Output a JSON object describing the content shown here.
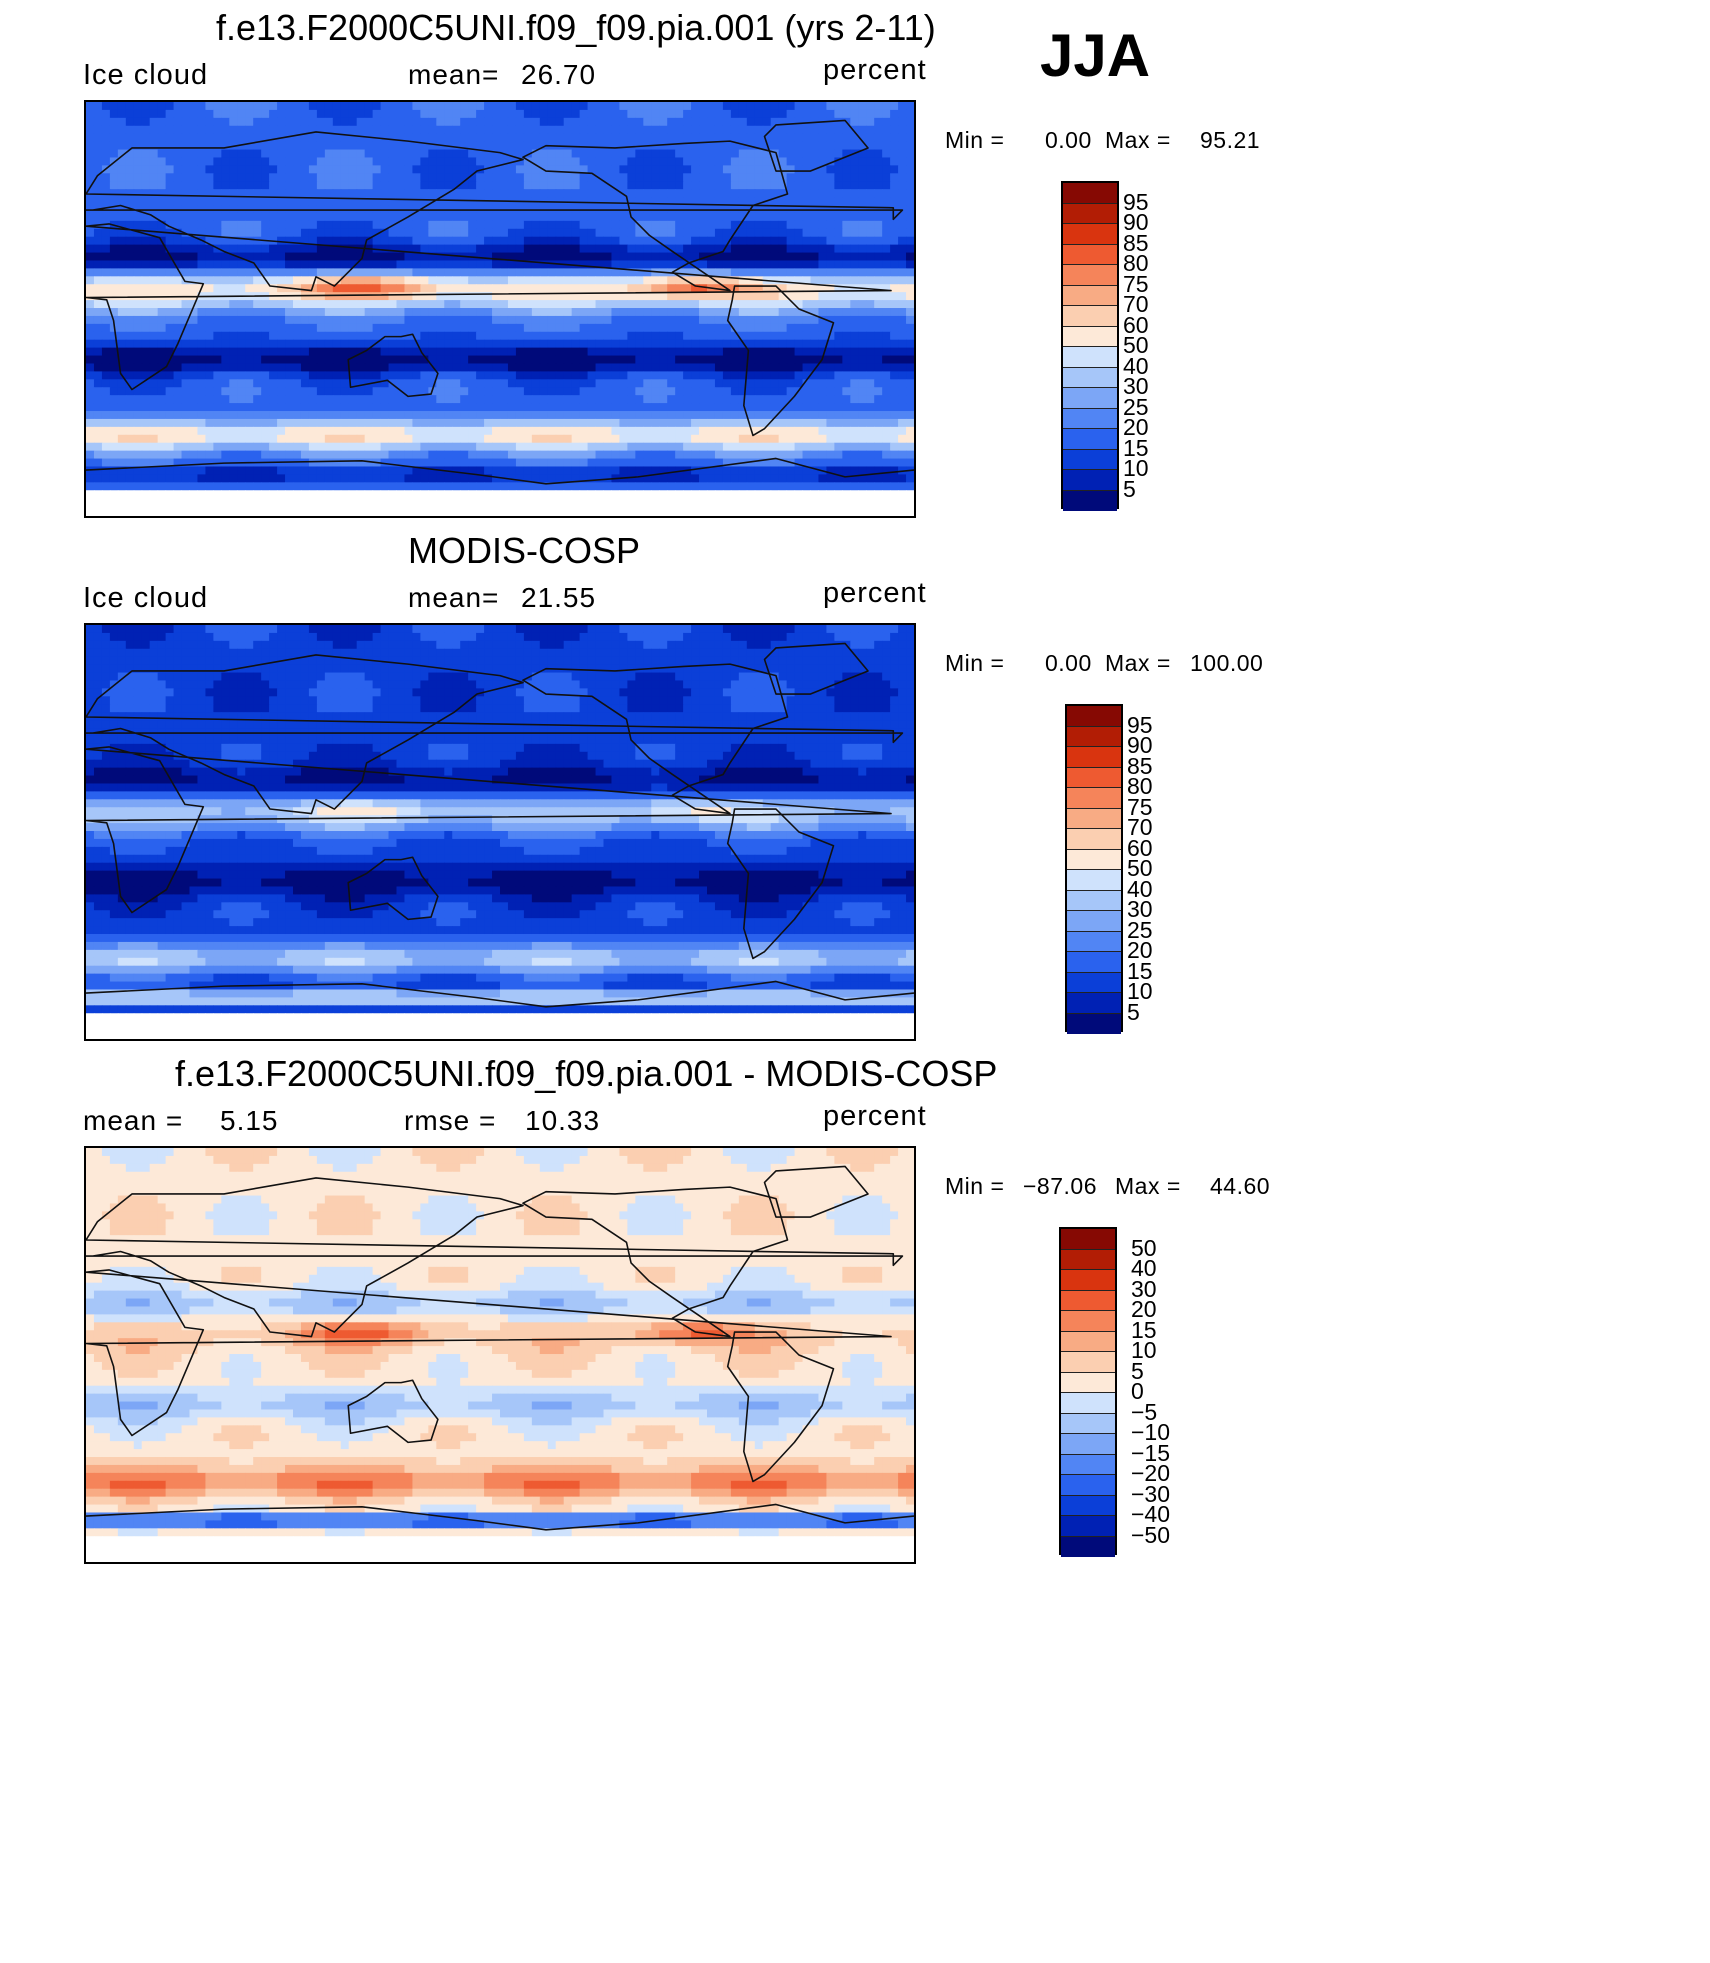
{
  "season": "JJA",
  "palettes": {
    "abs": [
      "#000a7a",
      "#0021b4",
      "#0b3fd8",
      "#2a62ee",
      "#5185f4",
      "#7ca6f6",
      "#a6c6f9",
      "#cfe2fc",
      "#fde9d8",
      "#fbcfb1",
      "#f8ab84",
      "#f5845a",
      "#ee5a31",
      "#d9340f",
      "#b21d05",
      "#860903"
    ],
    "diff": [
      "#000a7a",
      "#0021b4",
      "#0b3fd8",
      "#2a62ee",
      "#5185f4",
      "#7ca6f6",
      "#a6c6f9",
      "#cfe2fc",
      "#fde9d8",
      "#fbcfb1",
      "#f8ab84",
      "#f5845a",
      "#ee5a31",
      "#d9340f",
      "#b21d05",
      "#860903"
    ]
  },
  "panels": [
    {
      "title": "f.e13.F2000C5UNI.f09_f09.pia.001 (yrs 2-11)",
      "left_label": "Ice cloud",
      "mean_label": "mean=",
      "mean_value": "26.70",
      "units": "percent",
      "min_label": "Min  =",
      "min_value": "0.00",
      "max_label": "Max  =",
      "max_value": "95.21",
      "colorbar_ticks": [
        "95",
        "90",
        "85",
        "80",
        "75",
        "70",
        "60",
        "50",
        "40",
        "30",
        "25",
        "20",
        "15",
        "10",
        "5"
      ],
      "palette": "abs",
      "field": {
        "base": 3,
        "tropics_band": 8,
        "itcz": 12,
        "subtropic_dry": 0,
        "southern_ocean": 8,
        "antarctic": 1
      }
    },
    {
      "title": "MODIS-COSP",
      "left_label": "Ice cloud",
      "mean_label": "mean=",
      "mean_value": "21.55",
      "units": "percent",
      "min_label": "Min  =",
      "min_value": "0.00",
      "max_label": "Max  =",
      "max_value": "100.00",
      "colorbar_ticks": [
        "95",
        "90",
        "85",
        "80",
        "75",
        "70",
        "60",
        "50",
        "40",
        "30",
        "25",
        "20",
        "15",
        "10",
        "5"
      ],
      "palette": "abs",
      "field": {
        "base": 2,
        "tropics_band": 6,
        "itcz": 8,
        "subtropic_dry": 0,
        "southern_ocean": 6,
        "antarctic": 7
      }
    },
    {
      "title": "f.e13.F2000C5UNI.f09_f09.pia.001 - MODIS-COSP",
      "left_label": "mean  =",
      "left_value": "5.15",
      "mean_label": "rmse  =",
      "mean_value": "10.33",
      "units": "percent",
      "min_label": "Min  =",
      "min_value": "−87.06",
      "max_label": "Max  =",
      "max_value": "44.60",
      "colorbar_ticks": [
        "50",
        "40",
        "30",
        "20",
        "15",
        "10",
        "5",
        "0",
        "−5",
        "−10",
        "−15",
        "−20",
        "−30",
        "−40",
        "−50"
      ],
      "palette": "diff",
      "field": {
        "base": 8,
        "tropics_band": 9,
        "itcz": 12,
        "subtropic_dry": 6,
        "southern_ocean": 11,
        "antarctic": 2
      }
    }
  ]
}
